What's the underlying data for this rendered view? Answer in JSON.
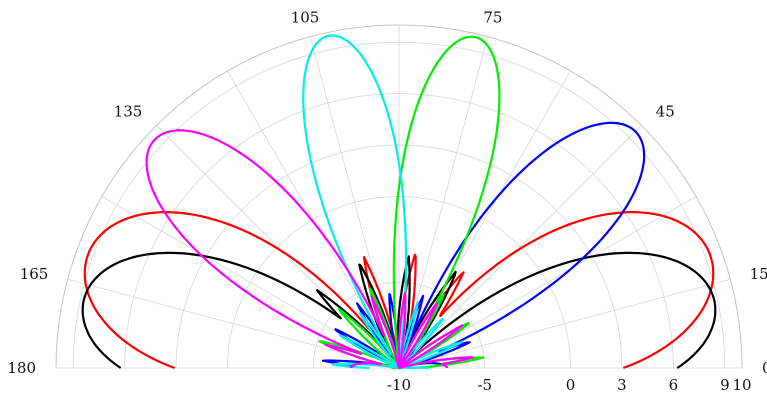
{
  "chart_data": {
    "type": "polar-line",
    "title": "",
    "theta_range_deg": [
      0,
      180
    ],
    "theta_tick_labels": [
      "0",
      "15",
      "45",
      "75",
      "105",
      "135",
      "165",
      "180"
    ],
    "r_scale": "dB",
    "r_range": [
      -10,
      10
    ],
    "r_tick_labels": [
      "-10",
      "-5",
      "0",
      "3",
      "6",
      "9",
      "10"
    ],
    "grid": true,
    "theta_grid_step_deg": 15,
    "radial_grid_values": [
      -5,
      0,
      3,
      6,
      9
    ],
    "series": [
      {
        "color": "#ff0000",
        "main_lobe_deg": 20,
        "main_lobe_peak_db": 9.3,
        "beamwidth_deg": 30,
        "sidelobe_peak_db": -3.2,
        "mirror": true
      },
      {
        "color": "#000000",
        "main_lobe_deg": 12,
        "main_lobe_peak_db": 8.8,
        "beamwidth_deg": 28,
        "sidelobe_peak_db": -3.4,
        "mirror": true
      },
      {
        "color": "#0000ff",
        "main_lobe_deg": 45,
        "main_lobe_peak_db": 9.5,
        "beamwidth_deg": 20,
        "sidelobe_peak_db": -5.5,
        "back_lobe_peak_db": -7.2
      },
      {
        "color": "#00ee00",
        "main_lobe_deg": 77,
        "main_lobe_peak_db": 9.8,
        "beamwidth_deg": 16,
        "sidelobe_peak_db": -5.0
      },
      {
        "color": "#00eeee",
        "main_lobe_deg": 102,
        "main_lobe_peak_db": 9.8,
        "beamwidth_deg": 16,
        "sidelobe_peak_db": -6.0
      },
      {
        "color": "#ff00ff",
        "main_lobe_deg": 137,
        "main_lobe_peak_db": 9.5,
        "beamwidth_deg": 20,
        "sidelobe_peak_db": -5.5,
        "back_lobe_peak_db": -7.2
      }
    ]
  }
}
